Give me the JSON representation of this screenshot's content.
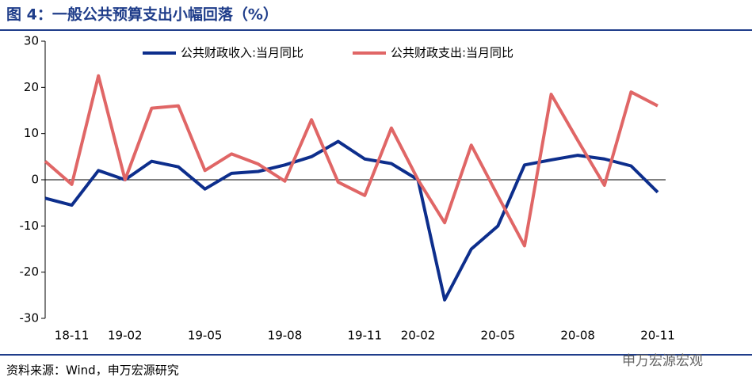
{
  "title": "图 4：一般公共预算支出小幅回落（%）",
  "source": "资料来源：Wind，申万宏源研究",
  "watermark": "申万宏源宏观",
  "chart_data": {
    "type": "line",
    "categories": [
      null,
      "18-11",
      null,
      "19-02",
      null,
      null,
      "19-05",
      null,
      null,
      "19-08",
      null,
      null,
      "19-11",
      null,
      "20-02",
      null,
      null,
      "20-05",
      null,
      null,
      "20-08",
      null,
      null,
      "20-11"
    ],
    "series": [
      {
        "name": "公共财政收入:当月同比",
        "color": "#0d2e8c",
        "values": [
          -4,
          -5.5,
          2,
          0,
          4,
          2.8,
          -2,
          1.4,
          1.8,
          3.2,
          5,
          8.3,
          4.5,
          3.5,
          0,
          -26,
          -15,
          -10,
          3.2,
          4.3,
          5.3,
          4.5,
          3,
          -2.7
        ]
      },
      {
        "name": "公共财政支出:当月同比",
        "color": "#e06666",
        "values": [
          4,
          -1,
          22.5,
          0,
          15.5,
          16,
          2,
          5.6,
          3.4,
          -0.3,
          13,
          -0.5,
          -3.4,
          11.2,
          0,
          -9.3,
          7.5,
          -3.5,
          -14.3,
          18.5,
          8.5,
          -1.2,
          19,
          16
        ]
      }
    ],
    "ylim": [
      -30,
      30
    ],
    "yticks": [
      -30,
      -20,
      -10,
      0,
      10,
      20,
      30
    ],
    "grid": false,
    "legend": "top"
  }
}
